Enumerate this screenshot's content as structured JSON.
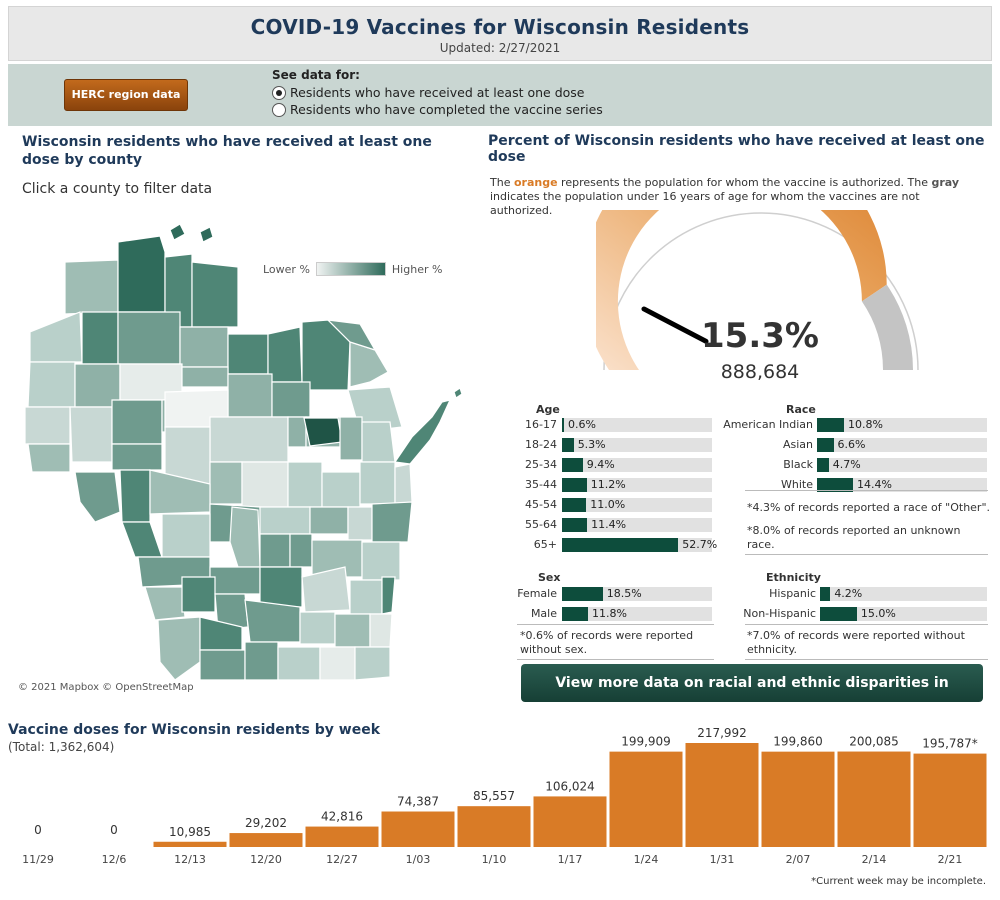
{
  "header": {
    "title": "COVID-19 Vaccines for Wisconsin Residents",
    "updated": "Updated: 2/27/2021"
  },
  "controls": {
    "herc_button": "HERC region data",
    "see_data_label": "See data for:",
    "options": [
      "Residents who have received at least one dose",
      "Residents who have completed the vaccine series"
    ],
    "selected": 0
  },
  "map": {
    "title": "Wisconsin residents who have received at least one dose by county",
    "hint": "Click a county to filter data",
    "legend_low": "Lower %",
    "legend_high": "Higher %",
    "credit": "© 2021 Mapbox © OpenStreetMap"
  },
  "gauge": {
    "title": "Percent of Wisconsin residents who have received at least one dose",
    "desc_prefix": "The ",
    "desc_orange": "orange",
    "desc_mid": " represents the population for whom the vaccine is authorized. The ",
    "desc_gray": "gray",
    "desc_suffix": " indicates the population under 16 years of age for whom the vaccines are not authorized.",
    "percent_label": "15.3%",
    "count_label": "888,684"
  },
  "colors": {
    "orange": "#d97b26",
    "dark_green": "#0d4d3c",
    "bar_bg": "#e1e1e1",
    "gray": "#c4c4c4"
  },
  "demographics": {
    "age": {
      "title": "Age",
      "rows": [
        {
          "label": "16-17",
          "value": 0.6,
          "text": "0.6%"
        },
        {
          "label": "18-24",
          "value": 5.3,
          "text": "5.3%"
        },
        {
          "label": "25-34",
          "value": 9.4,
          "text": "9.4%"
        },
        {
          "label": "35-44",
          "value": 11.2,
          "text": "11.2%"
        },
        {
          "label": "45-54",
          "value": 11.0,
          "text": "11.0%"
        },
        {
          "label": "55-64",
          "value": 11.4,
          "text": "11.4%"
        },
        {
          "label": "65+",
          "value": 52.7,
          "text": "52.7%"
        }
      ]
    },
    "race": {
      "title": "Race",
      "rows": [
        {
          "label": "American Indian",
          "value": 10.8,
          "text": "10.8%"
        },
        {
          "label": "Asian",
          "value": 6.6,
          "text": "6.6%"
        },
        {
          "label": "Black",
          "value": 4.7,
          "text": "4.7%"
        },
        {
          "label": "White",
          "value": 14.4,
          "text": "14.4%"
        }
      ],
      "note1": "*4.3% of records reported a race of \"Other\".",
      "note2": "*8.0% of records reported an unknown race."
    },
    "sex": {
      "title": "Sex",
      "rows": [
        {
          "label": "Female",
          "value": 18.5,
          "text": "18.5%"
        },
        {
          "label": "Male",
          "value": 11.8,
          "text": "11.8%"
        }
      ],
      "note": "*0.6% of records were reported without sex."
    },
    "ethnicity": {
      "title": "Ethnicity",
      "rows": [
        {
          "label": "Hispanic",
          "value": 4.2,
          "text": "4.2%"
        },
        {
          "label": "Non-Hispanic",
          "value": 15.0,
          "text": "15.0%"
        }
      ],
      "note": "*7.0% of records were reported without ethnicity."
    }
  },
  "disparities_button": "View more data on racial and ethnic disparities in Wisconsin",
  "weekly": {
    "title": "Vaccine doses for Wisconsin residents by week",
    "total": "(Total: 1,362,604)",
    "footnote": "*Current week may be incomplete."
  },
  "chart_data": [
    {
      "type": "gauge",
      "title": "Percent of Wisconsin residents who have received at least one dose",
      "value": 15.3,
      "count": 888684,
      "authorized_share": 0.81
    },
    {
      "type": "bar",
      "title": "Vaccine doses for Wisconsin residents by week",
      "categories": [
        "11/29",
        "12/6",
        "12/13",
        "12/20",
        "12/27",
        "1/03",
        "1/10",
        "1/17",
        "1/24",
        "1/31",
        "2/07",
        "2/14",
        "2/21"
      ],
      "values": [
        0,
        0,
        10985,
        29202,
        42816,
        74387,
        85557,
        106024,
        199909,
        217992,
        199860,
        200085,
        195787
      ],
      "labels": [
        "0",
        "0",
        "10,985",
        "29,202",
        "42,816",
        "74,387",
        "85,557",
        "106,024",
        "199,909",
        "217,992",
        "199,860",
        "200,085",
        "195,787*"
      ],
      "ylim": [
        0,
        217992
      ]
    }
  ]
}
